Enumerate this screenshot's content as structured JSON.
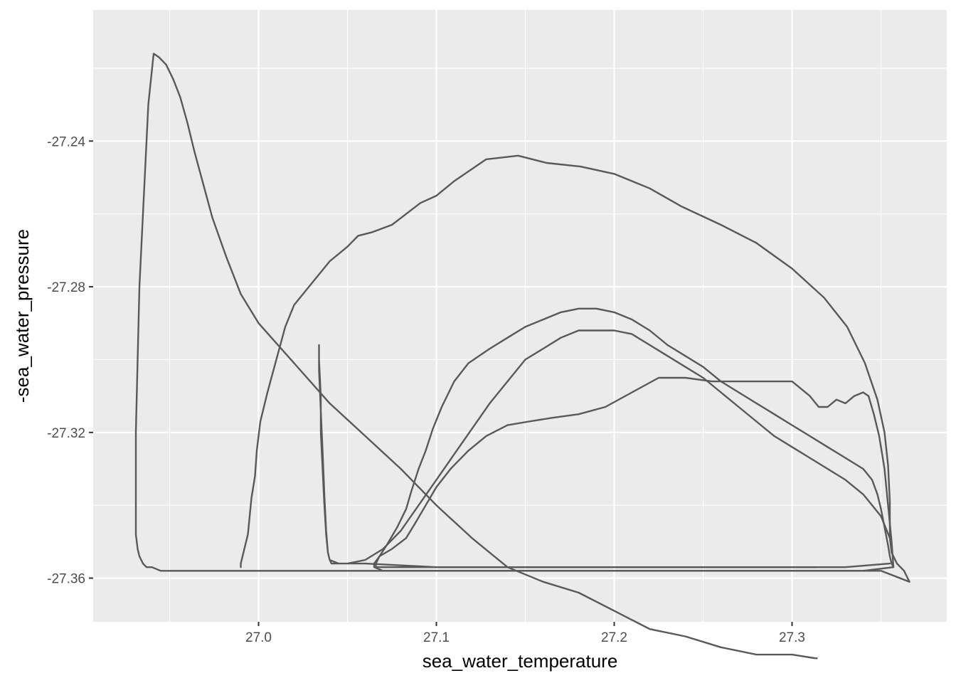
{
  "chart_data": {
    "type": "line",
    "title": "",
    "xlabel": "sea_water_temperature",
    "ylabel": "-sea_water_pressure",
    "xlim": [
      26.907,
      27.387
    ],
    "ylim": [
      -27.372,
      -27.204
    ],
    "x_ticks": [
      27.0,
      27.1,
      27.2,
      27.3
    ],
    "x_tick_labels": [
      "27.0",
      "27.1",
      "27.2",
      "27.3"
    ],
    "y_ticks": [
      -27.24,
      -27.28,
      -27.32,
      -27.36
    ],
    "y_tick_labels": [
      "-27.24",
      "-27.28",
      "-27.32",
      "-27.36"
    ],
    "grid": true,
    "legend": "none",
    "colors": {
      "panel": "#ebebeb",
      "grid": "#ffffff",
      "line": "#595959",
      "tick": "#333333"
    },
    "series": [
      {
        "x": [
          26.99,
          26.99,
          26.991,
          26.992,
          26.994,
          26.995,
          26.996,
          26.998,
          26.999,
          27.001,
          27.005,
          27.01,
          27.015,
          27.02,
          27.025,
          27.03,
          27.035,
          27.04,
          27.045,
          27.05,
          27.056,
          27.064,
          27.075,
          27.083,
          27.091,
          27.1,
          27.11,
          27.128,
          27.146,
          27.162,
          27.181,
          27.2,
          27.22,
          27.238,
          27.26,
          27.28,
          27.3,
          27.318,
          27.331,
          27.341,
          27.348,
          27.352,
          27.354,
          27.355,
          27.355,
          27.356,
          27.358,
          27.359,
          27.361,
          27.363,
          27.364,
          27.365,
          27.366
        ],
        "y": [
          -27.357,
          -27.356,
          -27.354,
          -27.352,
          -27.348,
          -27.343,
          -27.338,
          -27.332,
          -27.325,
          -27.317,
          -27.309,
          -27.3,
          -27.291,
          -27.285,
          -27.282,
          -27.279,
          -27.276,
          -27.273,
          -27.271,
          -27.269,
          -27.266,
          -27.265,
          -27.263,
          -27.26,
          -27.257,
          -27.255,
          -27.251,
          -27.245,
          -27.244,
          -27.246,
          -27.247,
          -27.249,
          -27.253,
          -27.258,
          -27.263,
          -27.268,
          -27.275,
          -27.283,
          -27.291,
          -27.301,
          -27.311,
          -27.32,
          -27.329,
          -27.339,
          -27.349,
          -27.353,
          -27.355,
          -27.356,
          -27.357,
          -27.358,
          -27.359,
          -27.36,
          -27.361
        ]
      },
      {
        "x": [
          27.366,
          27.35,
          27.3,
          27.2,
          27.1,
          27.0,
          26.96,
          26.95,
          26.945,
          26.94,
          26.937,
          26.935,
          26.933,
          26.932,
          26.931,
          26.931,
          26.931,
          26.931,
          26.932,
          26.933,
          26.935,
          26.938,
          26.941,
          26.944,
          26.948,
          26.952,
          26.956,
          26.96,
          26.964,
          26.969,
          26.974,
          26.982,
          26.99,
          27.0,
          27.02,
          27.04,
          27.06,
          27.08,
          27.1,
          27.12,
          27.14,
          27.16,
          27.18,
          27.2,
          27.22,
          27.24,
          27.26,
          27.28,
          27.3,
          27.313,
          27.314
        ],
        "y": [
          -27.361,
          -27.358,
          -27.358,
          -27.358,
          -27.358,
          -27.358,
          -27.358,
          -27.358,
          -27.358,
          -27.357,
          -27.357,
          -27.356,
          -27.354,
          -27.352,
          -27.348,
          -27.342,
          -27.335,
          -27.32,
          -27.3,
          -27.28,
          -27.26,
          -27.23,
          -27.216,
          -27.217,
          -27.219,
          -27.223,
          -27.228,
          -27.235,
          -27.243,
          -27.252,
          -27.261,
          -27.272,
          -27.282,
          -27.29,
          -27.301,
          -27.312,
          -27.321,
          -27.33,
          -27.34,
          -27.349,
          -27.357,
          -27.361,
          -27.364,
          -27.369,
          -27.374,
          -27.376,
          -27.379,
          -27.381,
          -27.381,
          -27.382,
          -27.382
        ]
      },
      {
        "x": [
          27.314,
          27.25,
          27.2,
          27.15,
          27.1,
          27.06,
          27.045,
          27.04,
          27.039,
          27.038,
          27.037,
          27.036,
          27.035,
          27.034,
          27.034,
          27.034,
          27.035,
          27.035,
          27.036,
          27.037,
          27.038,
          27.039,
          27.04,
          27.041,
          27.044,
          27.05,
          27.06,
          27.07,
          27.08,
          27.09,
          27.1,
          27.11,
          27.12,
          27.13,
          27.14,
          27.15,
          27.16,
          27.17,
          27.18,
          27.19,
          27.2,
          27.21,
          27.22,
          27.23,
          27.24,
          27.25,
          27.26,
          27.27,
          27.28,
          27.29,
          27.3,
          27.31,
          27.32,
          27.33,
          27.34,
          27.35,
          27.355
        ],
        "y": [
          -27.357,
          -27.357,
          -27.357,
          -27.357,
          -27.357,
          -27.356,
          -27.356,
          -27.355,
          -27.353,
          -27.347,
          -27.337,
          -27.325,
          -27.314,
          -27.303,
          -27.296,
          -27.3,
          -27.31,
          -27.32,
          -27.33,
          -27.34,
          -27.348,
          -27.353,
          -27.355,
          -27.356,
          -27.356,
          -27.356,
          -27.355,
          -27.352,
          -27.347,
          -27.34,
          -27.333,
          -27.326,
          -27.319,
          -27.312,
          -27.306,
          -27.3,
          -27.297,
          -27.294,
          -27.292,
          -27.292,
          -27.292,
          -27.293,
          -27.296,
          -27.299,
          -27.302,
          -27.305,
          -27.309,
          -27.313,
          -27.317,
          -27.321,
          -27.324,
          -27.327,
          -27.33,
          -27.333,
          -27.337,
          -27.343,
          -27.349
        ]
      },
      {
        "x": [
          27.355,
          27.33,
          27.3,
          27.25,
          27.2,
          27.15,
          27.1,
          27.075,
          27.066,
          27.066,
          27.068,
          27.072,
          27.078,
          27.083,
          27.086,
          27.09,
          27.094,
          27.098,
          27.103,
          27.11,
          27.118,
          27.13,
          27.14,
          27.15,
          27.16,
          27.17,
          27.18,
          27.19,
          27.2,
          27.21,
          27.22,
          27.23,
          27.24,
          27.25,
          27.26,
          27.27,
          27.28,
          27.29,
          27.3,
          27.31,
          27.32,
          27.33,
          27.34,
          27.345,
          27.348,
          27.35,
          27.352,
          27.354,
          27.355,
          27.356,
          27.357
        ],
        "y": [
          -27.356,
          -27.357,
          -27.357,
          -27.357,
          -27.357,
          -27.357,
          -27.357,
          -27.357,
          -27.357,
          -27.356,
          -27.354,
          -27.351,
          -27.346,
          -27.341,
          -27.336,
          -27.33,
          -27.325,
          -27.319,
          -27.313,
          -27.306,
          -27.301,
          -27.297,
          -27.294,
          -27.291,
          -27.289,
          -27.287,
          -27.286,
          -27.286,
          -27.287,
          -27.289,
          -27.292,
          -27.296,
          -27.299,
          -27.302,
          -27.306,
          -27.309,
          -27.312,
          -27.315,
          -27.318,
          -27.321,
          -27.324,
          -27.327,
          -27.33,
          -27.333,
          -27.337,
          -27.341,
          -27.346,
          -27.351,
          -27.354,
          -27.356,
          -27.357
        ]
      },
      {
        "x": [
          27.357,
          27.34,
          27.3,
          27.25,
          27.2,
          27.15,
          27.1,
          27.07,
          27.065,
          27.065,
          27.068,
          27.075,
          27.083,
          27.088,
          27.094,
          27.1,
          27.108,
          27.118,
          27.128,
          27.14,
          27.152,
          27.165,
          27.18,
          27.195,
          27.21,
          27.225,
          27.24,
          27.255,
          27.27,
          27.285,
          27.3,
          27.31,
          27.315,
          27.32,
          27.325,
          27.33,
          27.335,
          27.34,
          27.343,
          27.346,
          27.349,
          27.352,
          27.354,
          27.356,
          27.357
        ],
        "y": [
          -27.357,
          -27.358,
          -27.358,
          -27.358,
          -27.358,
          -27.358,
          -27.358,
          -27.358,
          -27.357,
          -27.356,
          -27.354,
          -27.352,
          -27.349,
          -27.345,
          -27.34,
          -27.335,
          -27.33,
          -27.325,
          -27.321,
          -27.318,
          -27.317,
          -27.316,
          -27.315,
          -27.313,
          -27.309,
          -27.305,
          -27.305,
          -27.306,
          -27.306,
          -27.306,
          -27.306,
          -27.31,
          -27.313,
          -27.313,
          -27.311,
          -27.312,
          -27.31,
          -27.309,
          -27.31,
          -27.315,
          -27.321,
          -27.33,
          -27.34,
          -27.35,
          -27.357
        ]
      }
    ]
  }
}
